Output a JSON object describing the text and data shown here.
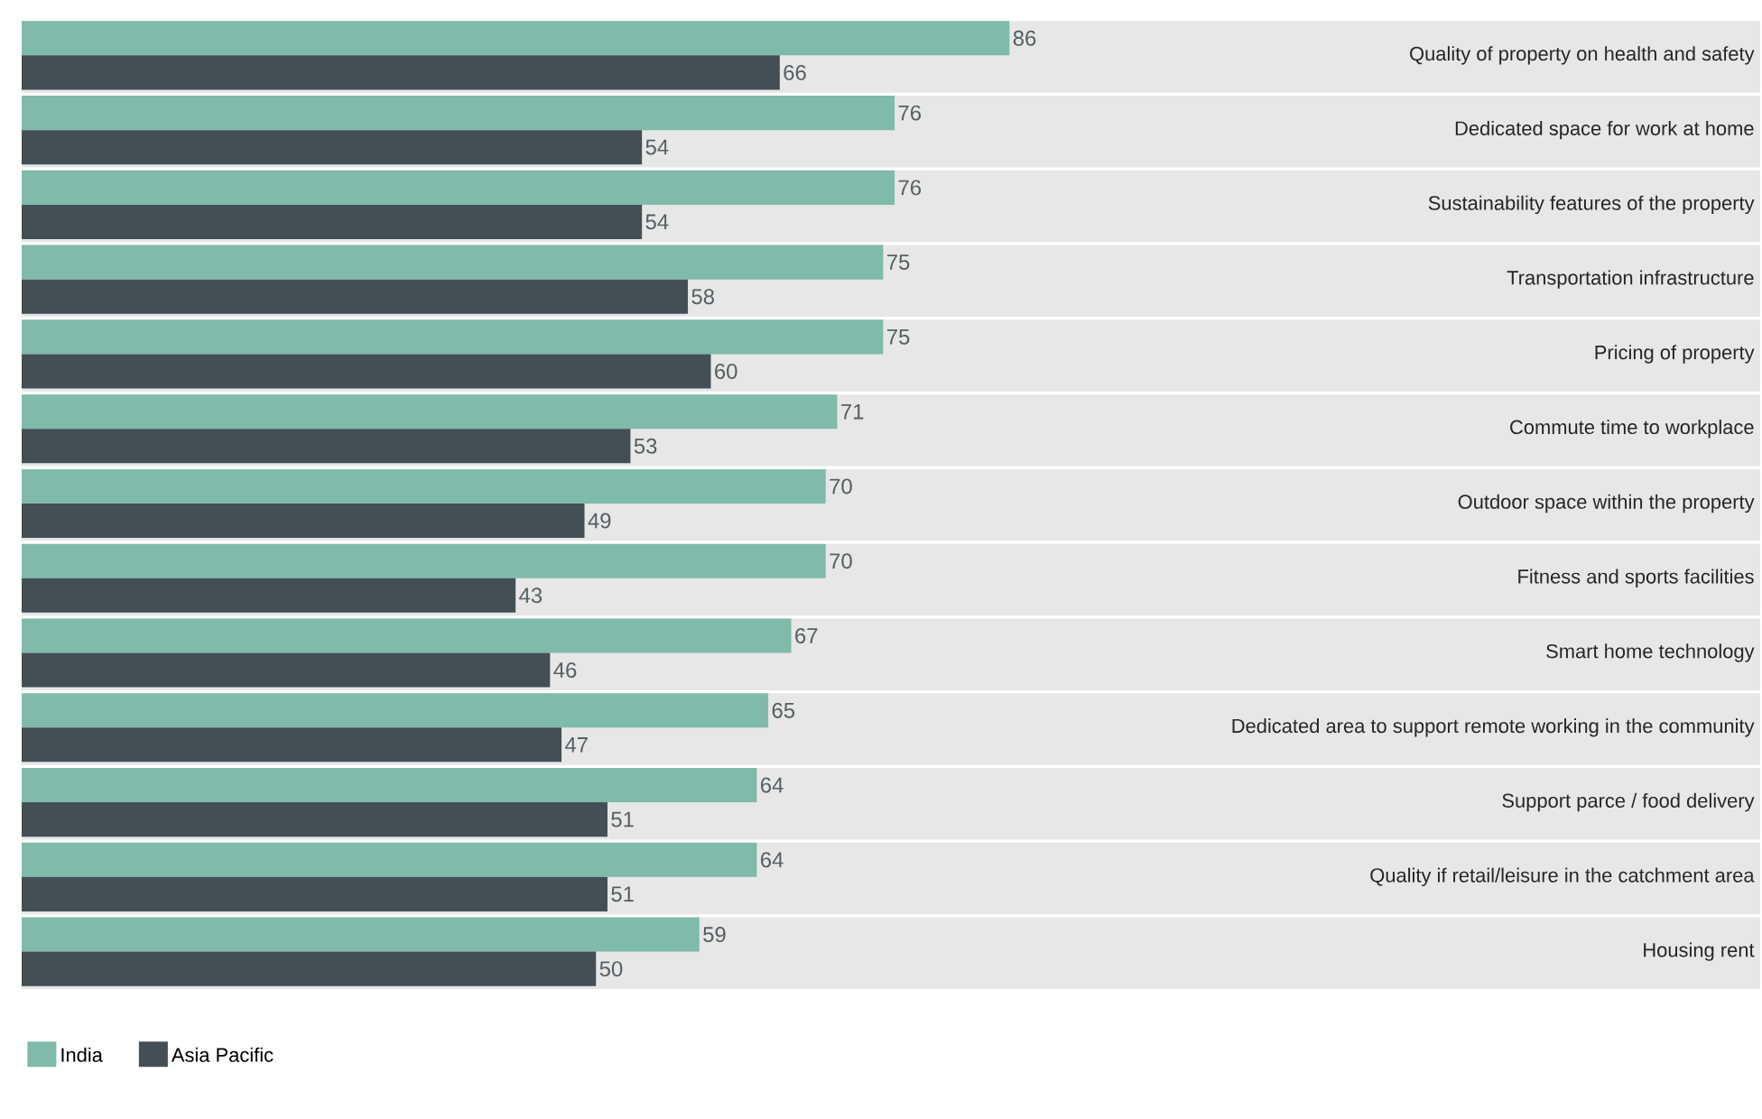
{
  "chart_data": {
    "type": "bar",
    "orientation": "horizontal",
    "data_labels": true,
    "legend": "bottom left",
    "categories": [
      "Quality of property on health and safety",
      "Dedicated space for work at home",
      "Sustainability features of the property",
      "Transportation infrastructure",
      "Pricing of property",
      "Commute time to workplace",
      "Outdoor space within the property",
      "Fitness and sports facilities",
      "Smart home technology",
      "Dedicated area to support remote working in the community",
      "Support parce / food delivery",
      "Quality if retail/leisure in the catchment area",
      "Housing rent"
    ],
    "series": [
      {
        "name": "India",
        "color": "#7fbaaa",
        "values": [
          86,
          76,
          76,
          75,
          75,
          71,
          70,
          70,
          67,
          65,
          64,
          64,
          59
        ]
      },
      {
        "name": "Asia Pacific",
        "color": "#434f55",
        "values": [
          66,
          54,
          54,
          58,
          60,
          53,
          49,
          43,
          46,
          47,
          51,
          51,
          50
        ]
      }
    ]
  }
}
